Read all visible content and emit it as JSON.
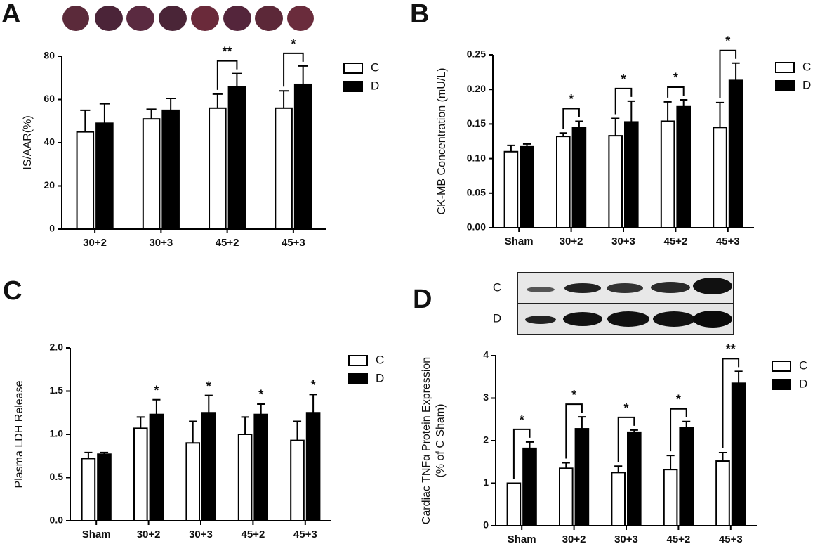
{
  "chart_data": [
    {
      "type": "bar",
      "panel": "A",
      "ylabel": [
        "IS/AAR(%)"
      ],
      "categories": [
        "30+2",
        "30+3",
        "45+2",
        "45+3"
      ],
      "series": [
        {
          "name": "C",
          "color": "#ffffff",
          "values": [
            45,
            51,
            56,
            56
          ],
          "errors": [
            10,
            4.5,
            6.5,
            8
          ]
        },
        {
          "name": "D",
          "color": "#000000",
          "values": [
            49,
            55,
            66,
            67
          ],
          "errors": [
            9,
            5.5,
            6,
            8.5
          ]
        }
      ],
      "ylim": [
        0,
        80
      ],
      "yticks": [
        0,
        20,
        40,
        60,
        80
      ],
      "annotations": [
        null,
        null,
        "**",
        "*"
      ],
      "annotation_style": "bracket"
    },
    {
      "type": "bar",
      "panel": "B",
      "ylabel": [
        "CK-MB Concentration (mU/L)"
      ],
      "categories": [
        "Sham",
        "30+2",
        "30+3",
        "45+2",
        "45+3"
      ],
      "series": [
        {
          "name": "C",
          "color": "#ffffff",
          "values": [
            0.11,
            0.132,
            0.133,
            0.154,
            0.145
          ],
          "errors": [
            0.009,
            0.005,
            0.025,
            0.028,
            0.036
          ]
        },
        {
          "name": "D",
          "color": "#000000",
          "values": [
            0.117,
            0.145,
            0.153,
            0.175,
            0.213
          ],
          "errors": [
            0.004,
            0.009,
            0.03,
            0.01,
            0.025
          ]
        }
      ],
      "ylim": [
        0,
        0.25
      ],
      "yticks": [
        {
          "value": 0,
          "label": "0.00"
        },
        0.05,
        {
          "value": 0.1,
          "label": "0.10"
        },
        0.15,
        {
          "value": 0.2,
          "label": "0.20"
        },
        0.25
      ],
      "annotations": [
        null,
        "*",
        "*",
        "*",
        "*"
      ],
      "annotation_style": "bracket"
    },
    {
      "type": "bar",
      "panel": "C",
      "ylabel": [
        "Plasma LDH Release"
      ],
      "categories": [
        "Sham",
        "30+2",
        "30+3",
        "45+2",
        "45+3"
      ],
      "series": [
        {
          "name": "C",
          "color": "#ffffff",
          "values": [
            0.72,
            1.07,
            0.9,
            1.0,
            0.93
          ],
          "errors": [
            0.07,
            0.13,
            0.25,
            0.2,
            0.22
          ]
        },
        {
          "name": "D",
          "color": "#000000",
          "values": [
            0.77,
            1.23,
            1.25,
            1.23,
            1.25
          ],
          "errors": [
            0.02,
            0.17,
            0.2,
            0.12,
            0.21
          ]
        }
      ],
      "ylim": [
        0,
        2
      ],
      "yticks": [
        {
          "value": 0,
          "label": "0.0"
        },
        0.5,
        {
          "value": 1,
          "label": "1.0"
        },
        1.5,
        {
          "value": 2,
          "label": "2.0"
        }
      ],
      "annotations": [
        null,
        "*",
        "*",
        "*",
        "*"
      ],
      "annotation_style": "star"
    },
    {
      "type": "bar",
      "panel": "D",
      "ylabel": [
        "Cardiac TNFα Protein Expression",
        "(% of C Sham)"
      ],
      "categories": [
        "Sham",
        "30+2",
        "30+3",
        "45+2",
        "45+3"
      ],
      "series": [
        {
          "name": "C",
          "color": "#ffffff",
          "values": [
            1.0,
            1.35,
            1.25,
            1.32,
            1.52
          ],
          "errors": [
            0,
            0.13,
            0.15,
            0.33,
            0.2
          ]
        },
        {
          "name": "D",
          "color": "#000000",
          "values": [
            1.82,
            2.28,
            2.2,
            2.3,
            3.35
          ],
          "errors": [
            0.15,
            0.28,
            0.05,
            0.15,
            0.28
          ]
        }
      ],
      "ylim": [
        0,
        4
      ],
      "yticks": [
        0,
        1,
        2,
        3,
        4
      ],
      "annotations": [
        "*",
        "*",
        "*",
        "*",
        "**"
      ],
      "annotation_style": "bracket",
      "blot_labels": [
        "C",
        "D"
      ]
    }
  ]
}
